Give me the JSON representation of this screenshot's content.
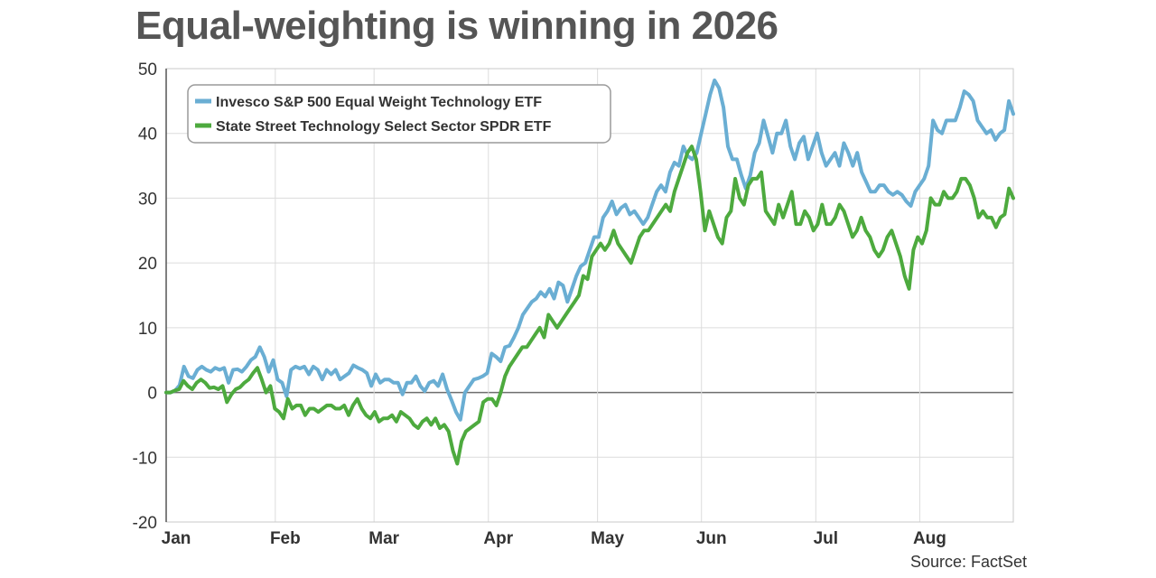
{
  "title": "Equal-weighting is winning in 2026",
  "source": "Source: FactSet",
  "chart_data": {
    "type": "line",
    "title": "Equal-weighting is winning in 2026",
    "ylim": [
      -20,
      50
    ],
    "yticks": [
      -20,
      -10,
      0,
      10,
      20,
      30,
      40,
      50
    ],
    "xlim": [
      0,
      163
    ],
    "xticks": [
      {
        "label": "Jan",
        "x": 0
      },
      {
        "label": "Feb",
        "x": 21
      },
      {
        "label": "Mar",
        "x": 40
      },
      {
        "label": "Apr",
        "x": 62
      },
      {
        "label": "May",
        "x": 83
      },
      {
        "label": "Jun",
        "x": 103
      },
      {
        "label": "Jul",
        "x": 125
      },
      {
        "label": "Aug",
        "x": 145
      }
    ],
    "grid": true,
    "legend_position": "top-left",
    "series": [
      {
        "name": "Invesco S&P 500 Equal Weight Technology ETF",
        "color": "#6aaed3",
        "values": [
          0,
          0,
          0.3,
          1.1,
          4,
          2.5,
          2.2,
          3.5,
          4,
          3.5,
          3.2,
          3.8,
          3.5,
          3.8,
          1.5,
          3.5,
          3.6,
          3.2,
          4,
          5,
          5.5,
          7,
          5.5,
          3.2,
          5,
          2,
          1.5,
          -0.6,
          3.5,
          4,
          3.7,
          4,
          2.8,
          4,
          3.5,
          2,
          3.5,
          2.8,
          3.5,
          2,
          2.5,
          3,
          4.2,
          3.8,
          3.5,
          3,
          1,
          2.8,
          1.5,
          2,
          2,
          1.5,
          1.5,
          -0.3,
          1.5,
          1.5,
          2.5,
          1,
          0.2,
          1.5,
          1.8,
          1,
          2.8,
          0.5,
          -1.2,
          -3,
          -4.2,
          0,
          1,
          2,
          2.2,
          2.5,
          3,
          6,
          5.5,
          4.8,
          7,
          7.2,
          8.5,
          10,
          12,
          13,
          14,
          14.5,
          15.5,
          14.8,
          16,
          14.5,
          17,
          16.5,
          14,
          16,
          18,
          19.5,
          20,
          22,
          24,
          24,
          27,
          28,
          29.5,
          27.5,
          28.5,
          29,
          27.5,
          28,
          27,
          26,
          27,
          29,
          31,
          32,
          31,
          34,
          35.5,
          35,
          38,
          36.5,
          36,
          37,
          40,
          43,
          46,
          48.2,
          47,
          44,
          38,
          36,
          36,
          33.5,
          31.5,
          33.5,
          37,
          38.5,
          42,
          39.5,
          37,
          40,
          40,
          42,
          38,
          36,
          38.5,
          39.5,
          36,
          38,
          40,
          37,
          35,
          36,
          37,
          35,
          38.5,
          37,
          35,
          37,
          34,
          32.5,
          31,
          31,
          32,
          32,
          31,
          30.5,
          31,
          30.5,
          29.5,
          28.8,
          31,
          32,
          33,
          35,
          42,
          40.5,
          40,
          42,
          42,
          42,
          44,
          46.5,
          46,
          45,
          42,
          41,
          40,
          40.5,
          39,
          40,
          40.5,
          45,
          43
        ]
      },
      {
        "name": "State Street Technology Select Sector SPDR ETF",
        "color": "#4daa3e",
        "values": [
          0,
          0,
          0.3,
          0.5,
          1.8,
          1,
          0.5,
          1.5,
          2,
          1.5,
          0.7,
          0.8,
          0.5,
          1,
          -1.5,
          -0.3,
          0.5,
          0.8,
          1.5,
          2,
          3,
          3.8,
          2,
          0,
          1,
          -2.5,
          -3,
          -4,
          -1,
          -2.5,
          -2,
          -2,
          -3.5,
          -2.5,
          -2.5,
          -3,
          -2.5,
          -2,
          -2,
          -2.5,
          -2.5,
          -2,
          -3.5,
          -2,
          -1,
          -2.5,
          -3.5,
          -4,
          -3,
          -4.5,
          -4,
          -4,
          -3.5,
          -4.5,
          -3,
          -3.5,
          -4,
          -5,
          -5.5,
          -4.5,
          -4,
          -5,
          -4,
          -5.5,
          -5,
          -6,
          -9,
          -11,
          -7.5,
          -6,
          -5.5,
          -5,
          -4.5,
          -1.5,
          -1,
          -1,
          -2,
          0,
          2.5,
          4,
          5,
          6,
          7,
          7,
          8,
          9,
          10,
          8.5,
          12,
          11,
          10,
          11,
          12,
          13,
          14,
          15,
          18,
          17.5,
          21,
          22,
          23,
          22,
          23,
          25,
          23,
          22,
          21,
          20,
          22,
          24,
          25,
          25,
          26,
          27,
          28,
          29,
          28,
          31,
          33,
          35,
          37,
          38,
          36,
          31,
          25,
          28,
          26,
          24,
          23,
          27,
          28,
          33,
          30,
          29,
          32,
          33,
          33,
          34,
          28,
          27,
          26,
          29,
          27,
          29,
          31,
          26,
          26,
          28,
          27,
          25,
          26,
          29,
          26,
          26,
          27,
          29,
          28,
          26,
          24,
          25,
          27,
          25,
          24,
          22,
          21,
          22,
          24,
          25,
          23,
          21,
          18,
          16,
          22,
          24,
          23,
          25,
          30,
          29,
          29,
          31,
          30,
          30,
          31,
          33,
          33,
          32,
          30,
          27,
          28,
          27,
          27,
          25.5,
          27,
          27.5,
          31.5,
          30
        ]
      }
    ]
  }
}
